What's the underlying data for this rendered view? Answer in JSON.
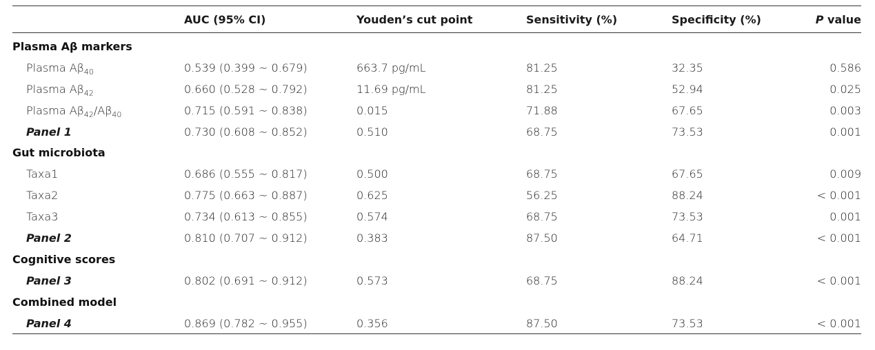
{
  "headers": {
    "col0": "",
    "auc": "AUC (95% CI)",
    "cut": "Youden’s cut point",
    "sens": "Sensitivity (%)",
    "spec": "Specificity (%)",
    "p_italic": "P",
    "p_rest": " value"
  },
  "sections": {
    "plasma": "Plasma Aβ markers",
    "gut": "Gut microbiota",
    "cog": "Cognitive scores",
    "comb": "Combined model"
  },
  "rows": [
    {
      "label_pre": "Plasma Aβ",
      "label_sub": "40",
      "auc": "0.539 (0.399 ~ 0.679)",
      "cut": "663.7 pg/mL",
      "sens": "81.25",
      "spec": "32.35",
      "p": "0.586"
    },
    {
      "label_pre": "Plasma Aβ",
      "label_sub": "42",
      "auc": "0.660 (0.528 ~ 0.792)",
      "cut": "11.69 pg/mL",
      "sens": "81.25",
      "spec": "52.94",
      "p": "0.025"
    },
    {
      "label_pre": "Plasma Aβ",
      "label_sub": "42",
      "label_mid": "/Aβ",
      "label_sub2": "40",
      "auc": "0.715 (0.591 ~ 0.838)",
      "cut": "0.015",
      "sens": "71.88",
      "spec": "67.65",
      "p": "0.003"
    },
    {
      "label": "Panel 1",
      "auc": "0.730 (0.608 ~ 0.852)",
      "cut": "0.510",
      "sens": "68.75",
      "spec": "73.53",
      "p": "0.001"
    },
    {
      "label": "Taxa1",
      "auc": "0.686 (0.555 ~ 0.817)",
      "cut": "0.500",
      "sens": "68.75",
      "spec": "67.65",
      "p": "0.009"
    },
    {
      "label": "Taxa2",
      "auc": "0.775 (0.663 ~ 0.887)",
      "cut": "0.625",
      "sens": "56.25",
      "spec": "88.24",
      "p": "< 0.001"
    },
    {
      "label": "Taxa3",
      "auc": "0.734 (0.613 ~ 0.855)",
      "cut": "0.574",
      "sens": "68.75",
      "spec": "73.53",
      "p": "0.001"
    },
    {
      "label": "Panel 2",
      "auc": "0.810 (0.707 ~ 0.912)",
      "cut": "0.383",
      "sens": "87.50",
      "spec": "64.71",
      "p": "< 0.001"
    },
    {
      "label": "Panel 3",
      "auc": "0.802 (0.691 ~ 0.912)",
      "cut": "0.573",
      "sens": "68.75",
      "spec": "88.24",
      "p": "< 0.001"
    },
    {
      "label": "Panel 4",
      "auc": "0.869 (0.782 ~ 0.955)",
      "cut": "0.356",
      "sens": "87.50",
      "spec": "73.53",
      "p": "< 0.001"
    }
  ]
}
